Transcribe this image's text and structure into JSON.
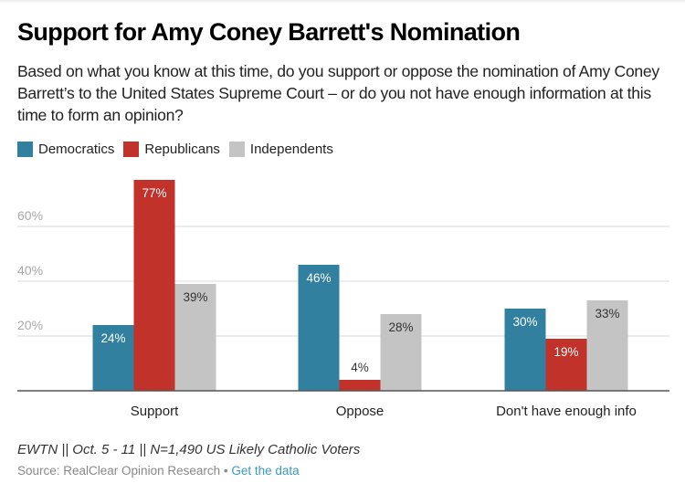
{
  "header": {
    "title": "Support for Amy Coney Barrett's Nomination",
    "subtitle": "Based on what you know at this time, do you support or oppose the nomination of Amy Coney Barrett’s to the United States Supreme Court – or do you not have enough information at this time to form an opinion?"
  },
  "footer": {
    "note": "EWTN || Oct. 5 - 11 || N=1,490 US Likely Catholic Voters",
    "source_prefix": "Source: RealClear Opinion Research",
    "separator": " • ",
    "get_data_link": "Get the data"
  },
  "colors": {
    "Democratics": "#31809f",
    "Republicans": "#c0322a",
    "Independents": "#c4c4c4"
  },
  "chart_data": {
    "type": "bar",
    "title": "Support for Amy Coney Barrett's Nomination",
    "xlabel": "",
    "ylabel": "",
    "categories": [
      "Support",
      "Oppose",
      "Don't have enough info"
    ],
    "series": [
      {
        "name": "Democratics",
        "values": [
          24,
          46,
          30
        ]
      },
      {
        "name": "Republicans",
        "values": [
          77,
          4,
          19
        ]
      },
      {
        "name": "Independents",
        "values": [
          39,
          28,
          33
        ]
      }
    ],
    "value_suffix": "%",
    "ylim": [
      0,
      80
    ],
    "yticks": [
      20,
      40,
      60
    ],
    "ytick_labels": [
      "20%",
      "40%",
      "60%"
    ],
    "grid": true,
    "legend_position": "top-left"
  }
}
